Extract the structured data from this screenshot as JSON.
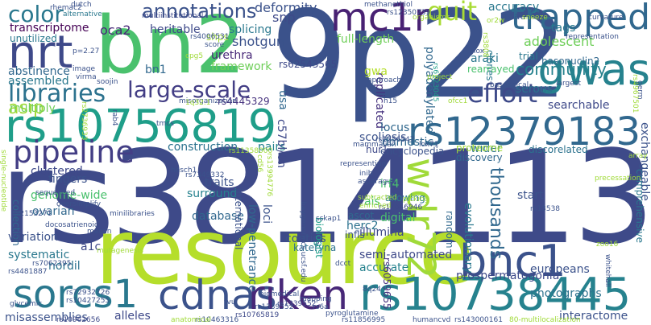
{
  "words": [
    {
      "text": "9p22",
      "color": "#3b528b"
    },
    {
      "text": "rs3814113",
      "color": "#3e4a89"
    },
    {
      "text": "resource",
      "color": "#b5de2b"
    },
    {
      "text": "bn2",
      "color": "#4ac16d"
    },
    {
      "text": "rs10756819",
      "color": "#1f9e89"
    },
    {
      "text": "rs12379183",
      "color": "#31688e"
    },
    {
      "text": "rs10738445",
      "color": "#26828e"
    },
    {
      "text": "gwas",
      "color": "#26828e"
    },
    {
      "text": "mc1r",
      "color": "#482173"
    },
    {
      "text": "trapped",
      "color": "#31688e"
    },
    {
      "text": "nrt",
      "color": "#3e4989"
    },
    {
      "text": "bnc1",
      "color": "#3b528b"
    },
    {
      "text": "sorcs1",
      "color": "#2a788e"
    },
    {
      "text": "cdnas",
      "color": "#3b528b"
    },
    {
      "text": "riken",
      "color": "#482878"
    },
    {
      "text": "pipeline",
      "color": "#433e85"
    },
    {
      "text": "wdr72",
      "color": "#a0da39"
    },
    {
      "text": "libraries",
      "color": "#2c728e"
    },
    {
      "text": "large-scale",
      "color": "#433e85"
    },
    {
      "text": "annotations",
      "color": "#3b528b"
    },
    {
      "text": "effort",
      "color": "#3e4a89"
    },
    {
      "text": "community",
      "color": "#26828e"
    },
    {
      "text": "color",
      "color": "#2a788e"
    },
    {
      "text": "quit",
      "color": "#a8db34"
    },
    {
      "text": "asip",
      "color": "#a0da39"
    },
    {
      "text": "thousands",
      "color": "#31688e"
    },
    {
      "text": "transcriptome",
      "color": "#440154"
    },
    {
      "text": "deformity",
      "color": "#3b528b"
    },
    {
      "text": "accuracy",
      "color": "#2a788e"
    },
    {
      "text": "snp",
      "color": "#3e4989"
    },
    {
      "text": "tags",
      "color": "#2a788e"
    },
    {
      "text": "adolescent",
      "color": "#6ece58"
    },
    {
      "text": "splicing",
      "color": "#2a788e"
    },
    {
      "text": "heritable",
      "color": "#3e4989"
    },
    {
      "text": "shotgun",
      "color": "#3b528b"
    },
    {
      "text": "urethra",
      "color": "#482878"
    },
    {
      "text": "rs62543565",
      "color": "#3e4989"
    },
    {
      "text": "full-length",
      "color": "#6ece58"
    },
    {
      "text": "shps",
      "color": "#a0da39"
    },
    {
      "text": "unutilized",
      "color": "#2a788e"
    },
    {
      "text": "framework",
      "color": "#6ece58"
    },
    {
      "text": "abstinence",
      "color": "#31688e"
    },
    {
      "text": "assembled",
      "color": "#2a788e"
    },
    {
      "text": "multiply",
      "color": "#6ece58"
    },
    {
      "text": "rs4445329",
      "color": "#46327e"
    },
    {
      "text": "polyadenylated",
      "color": "#31688e"
    },
    {
      "text": "replicated",
      "color": "#46327e"
    },
    {
      "text": "serous",
      "color": "#2c728e"
    },
    {
      "text": "trial",
      "color": "#2a788e"
    },
    {
      "text": "read",
      "color": "#3b528b"
    },
    {
      "text": "clones",
      "color": "#2a788e"
    },
    {
      "text": "searchable",
      "color": "#3e4989"
    },
    {
      "text": "oca2",
      "color": "#482878"
    },
    {
      "text": "scoliosis",
      "color": "#3b528b"
    },
    {
      "text": "locus",
      "color": "#31688e"
    },
    {
      "text": "construction",
      "color": "#2c728e"
    },
    {
      "text": "pairs",
      "color": "#26828e"
    },
    {
      "text": "clustered",
      "color": "#3e4989"
    },
    {
      "text": "domestic",
      "color": "#31688e"
    },
    {
      "text": "encyclopedia",
      "color": "#3b528b"
    },
    {
      "text": "wider",
      "color": "#2c728e"
    },
    {
      "text": "proteome",
      "color": "#a0da39"
    },
    {
      "text": "discovery",
      "color": "#31688e"
    },
    {
      "text": "traits",
      "color": "#3b528b"
    },
    {
      "text": "fingers",
      "color": "#3b528b"
    },
    {
      "text": "surround",
      "color": "#26828e"
    },
    {
      "text": "genome-wide",
      "color": "#4ac16d"
    },
    {
      "text": "database",
      "color": "#31688e"
    },
    {
      "text": "irf4",
      "color": "#4ac16d"
    },
    {
      "text": "international",
      "color": "#3b528b"
    },
    {
      "text": "ovarian",
      "color": "#31688e"
    },
    {
      "text": "collection",
      "color": "#31688e"
    },
    {
      "text": "evolutionary",
      "color": "#2a788e"
    },
    {
      "text": "random",
      "color": "#31688e"
    },
    {
      "text": "allowing",
      "color": "#2a788e"
    },
    {
      "text": "ais",
      "color": "#4ac16d"
    },
    {
      "text": "herc2",
      "color": "#2c728e"
    },
    {
      "text": "start",
      "color": "#3b528b"
    },
    {
      "text": "illumina",
      "color": "#3e4989"
    },
    {
      "text": "digital",
      "color": "#4ac16d"
    },
    {
      "text": "variation",
      "color": "#3b528b"
    },
    {
      "text": "a1c",
      "color": "#3e4989"
    },
    {
      "text": "systematic",
      "color": "#2a788e"
    },
    {
      "text": "nordil",
      "color": "#2c728e"
    },
    {
      "text": "semi-automated",
      "color": "#3e4989"
    },
    {
      "text": "accurate",
      "color": "#26828e"
    },
    {
      "text": "prospermatogonia",
      "color": "#3e4989"
    },
    {
      "text": "europeans",
      "color": "#3b528b"
    },
    {
      "text": "photographs",
      "color": "#2c728e"
    },
    {
      "text": "interactome",
      "color": "#3b528b"
    },
    {
      "text": "contigs",
      "color": "#3b528b"
    },
    {
      "text": "kateryna",
      "color": "#2c728e"
    },
    {
      "text": "discorelated",
      "color": "#2c728e"
    },
    {
      "text": "exchangeable",
      "color": "#3b528b"
    },
    {
      "text": "misassemblies",
      "color": "#3b528b"
    },
    {
      "text": "alleles",
      "color": "#3e4989"
    },
    {
      "text": "basonuclin2",
      "color": "#31688e"
    },
    {
      "text": "araki",
      "color": "#2a788e"
    },
    {
      "text": "rearrayed",
      "color": "#4ac16d"
    },
    {
      "text": "loci",
      "color": "#3b528b"
    },
    {
      "text": "low-penetrance",
      "color": "#31688e"
    },
    {
      "text": "biologist",
      "color": "#1f9e89"
    },
    {
      "text": "infls",
      "color": "#3b528b"
    },
    {
      "text": "ascot",
      "color": "#31688e"
    },
    {
      "text": "hur1",
      "color": "#3e4989"
    },
    {
      "text": "c57bl/6n",
      "color": "#3e4989"
    },
    {
      "text": "usa",
      "color": "#31688e"
    },
    {
      "text": "comprehensive",
      "color": "#2a788e"
    },
    {
      "text": "rs6059655",
      "color": "#46327e"
    },
    {
      "text": "bn1",
      "color": "#31688e"
    },
    {
      "text": "gwa",
      "color": "#b5de2b"
    },
    {
      "text": "rs10962656",
      "color": "#3e4989"
    },
    {
      "text": "rs10765819",
      "color": "#3e4989"
    },
    {
      "text": "rs1339552",
      "color": "#3e4989"
    },
    {
      "text": "rs17646946",
      "color": "#3e4989"
    },
    {
      "text": "rs10427255",
      "color": "#3b528b"
    },
    {
      "text": "rs72932726",
      "color": "#3b528b"
    },
    {
      "text": "rs4481887",
      "color": "#3b528b"
    },
    {
      "text": "rs7349332",
      "color": "#3b528b"
    },
    {
      "text": "rs2153271",
      "color": "#3b528b"
    },
    {
      "text": "rs7062395",
      "color": "#3b528b"
    },
    {
      "text": "rs13538",
      "color": "#3b528b"
    },
    {
      "text": "rs10463316",
      "color": "#3b528b"
    },
    {
      "text": "rs11856995",
      "color": "#3b528b"
    },
    {
      "text": "rs143000161",
      "color": "#3b528b"
    },
    {
      "text": "rs4006531",
      "color": "#3b528b"
    },
    {
      "text": "rs12350739",
      "color": "#3b528b"
    },
    {
      "text": "rs1556547",
      "color": "#3b528b"
    },
    {
      "text": "rs11358000",
      "color": "#a0da39"
    },
    {
      "text": "rs2736933",
      "color": "#a0da39"
    },
    {
      "text": "rs3808",
      "color": "#a0da39"
    },
    {
      "text": "rs4967501",
      "color": "#a0da39"
    },
    {
      "text": "rs6123045",
      "color": "#1f9e89"
    },
    {
      "text": "rs1339552",
      "color": "#3b528b"
    },
    {
      "text": "methanethiol",
      "color": "#3b528b"
    },
    {
      "text": "dutch",
      "color": "#3b528b"
    },
    {
      "text": "rhemac2",
      "color": "#3b528b"
    },
    {
      "text": "alternative",
      "color": "#2a788e"
    },
    {
      "text": "multiinstitutional",
      "color": "#3e4989"
    },
    {
      "text": "organisms",
      "color": "#a0da39"
    },
    {
      "text": "or2w",
      "color": "#a0da39"
    },
    {
      "text": "sneeze",
      "color": "#a0da39"
    },
    {
      "text": "curvature",
      "color": "#3b528b"
    },
    {
      "text": "representation",
      "color": "#3b528b"
    },
    {
      "text": "lox",
      "color": "#3b528b"
    },
    {
      "text": "score",
      "color": "#3b528b"
    },
    {
      "text": "p=2.27",
      "color": "#3b528b"
    },
    {
      "text": "virma",
      "color": "#3b528b"
    },
    {
      "text": "image",
      "color": "#3b528b"
    },
    {
      "text": "soojin",
      "color": "#3b528b"
    },
    {
      "text": "cpg5",
      "color": "#a0da39"
    },
    {
      "text": "misorganization",
      "color": "#3b528b"
    },
    {
      "text": "approach",
      "color": "#3b528b"
    },
    {
      "text": "basoapical",
      "color": "#3b528b"
    },
    {
      "text": "largest",
      "color": "#3b528b"
    },
    {
      "text": "germ",
      "color": "#3b528b"
    },
    {
      "text": "makova",
      "color": "#3b528b"
    },
    {
      "text": "h15",
      "color": "#3b528b"
    },
    {
      "text": "ofcc1",
      "color": "#a0da39"
    },
    {
      "text": "project",
      "color": "#a0da39"
    },
    {
      "text": "1q32.1",
      "color": "#a0da39"
    },
    {
      "text": "tmcs",
      "color": "#3b528b"
    },
    {
      "text": "rab4",
      "color": "#3b528b"
    },
    {
      "text": "mammalian",
      "color": "#3b528b"
    },
    {
      "text": "lox71",
      "color": "#3b528b"
    },
    {
      "text": "single-nucleotide",
      "color": "#a0da39"
    },
    {
      "text": "hesch1",
      "color": "#3b528b"
    },
    {
      "text": "cd56",
      "color": "#a0da39"
    },
    {
      "text": "rs13994776",
      "color": "#a0da39"
    },
    {
      "text": "representing",
      "color": "#3b528b"
    },
    {
      "text": "inib",
      "color": "#3b528b"
    },
    {
      "text": "asparagus",
      "color": "#3b528b"
    },
    {
      "text": "precessation",
      "color": "#a0da39"
    },
    {
      "text": "array",
      "color": "#a0da39"
    },
    {
      "text": "sequenced",
      "color": "#3b528b"
    },
    {
      "text": "oversimplify",
      "color": "#3b528b"
    },
    {
      "text": "minilibraries",
      "color": "#3b528b"
    },
    {
      "text": "subtracted",
      "color": "#a0da39"
    },
    {
      "text": "enriched",
      "color": "#a0da39"
    },
    {
      "text": "picking",
      "color": "#a0da39"
    },
    {
      "text": "docosatrienoic",
      "color": "#3b528b"
    },
    {
      "text": "macan",
      "color": "#3b528b"
    },
    {
      "text": "sskap1",
      "color": "#3b528b"
    },
    {
      "text": "baygenomics.ucsf.edu",
      "color": "#3b528b"
    },
    {
      "text": "mutagenesis",
      "color": "#a0da39"
    },
    {
      "text": "dcct",
      "color": "#3b528b"
    },
    {
      "text": "8q24",
      "color": "#3b528b"
    },
    {
      "text": "glycemic",
      "color": "#3b528b"
    },
    {
      "text": "tvu",
      "color": "#3b528b"
    },
    {
      "text": "anatomical",
      "color": "#a0da39"
    },
    {
      "text": "biomedical",
      "color": "#3b528b"
    },
    {
      "text": "pyroglutamine",
      "color": "#3b528b"
    },
    {
      "text": "rs6a",
      "color": "#3b528b"
    },
    {
      "text": "humancvd",
      "color": "#3b528b"
    },
    {
      "text": "80-multilocalization",
      "color": "#a0da39"
    },
    {
      "text": "mapping",
      "color": "#3b528b"
    },
    {
      "text": "whitehall",
      "color": "#3b528b"
    },
    {
      "text": "zoo16",
      "color": "#a0da39"
    }
  ]
}
